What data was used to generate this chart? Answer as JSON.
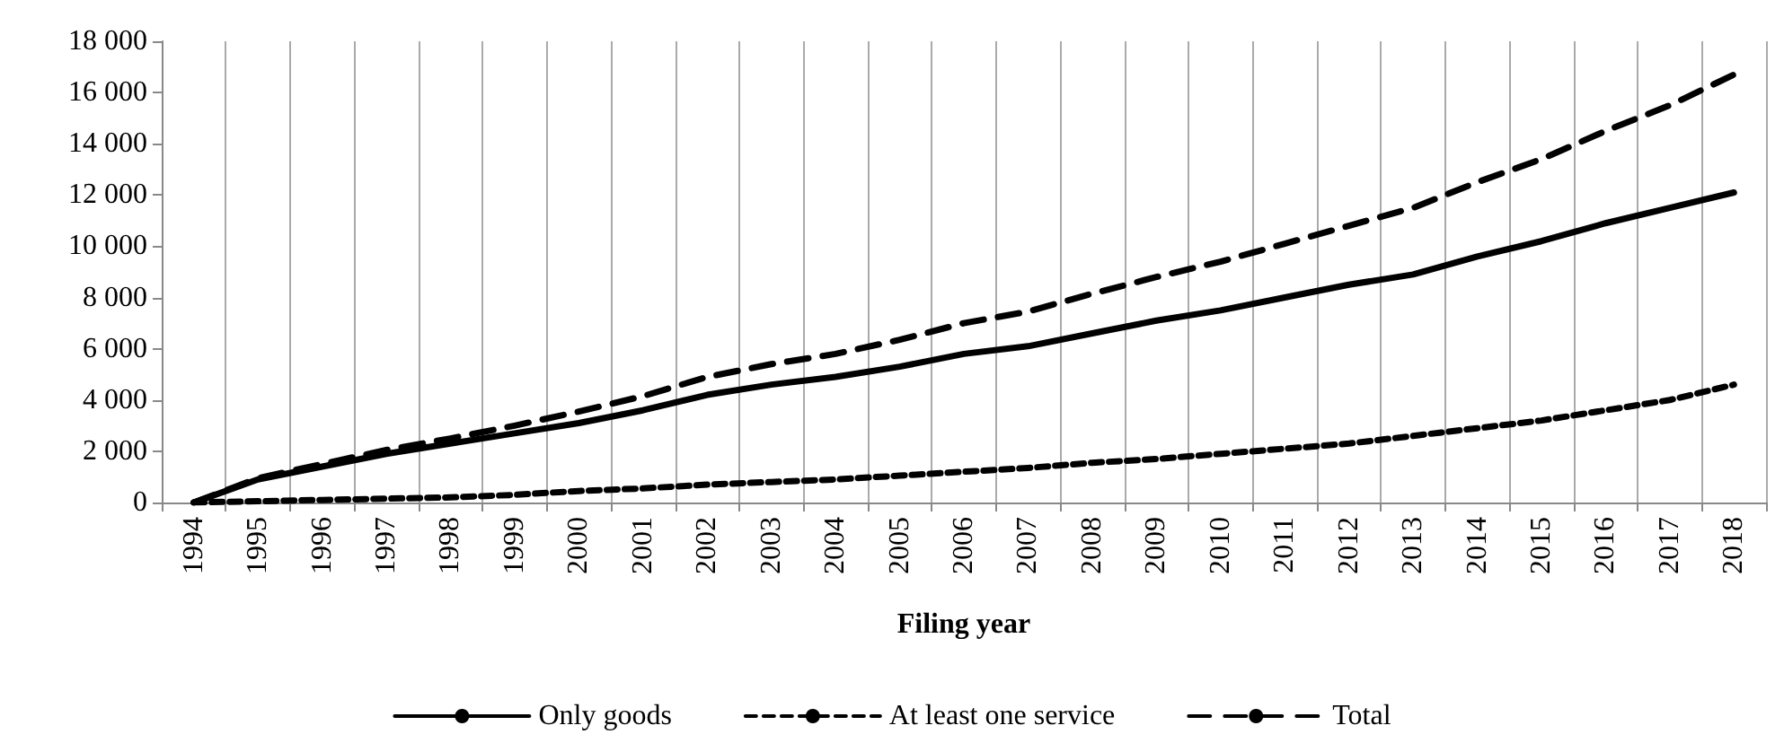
{
  "chart_data": {
    "type": "line",
    "xlabel": "Filing year",
    "categories": [
      "1994",
      "1995",
      "1996",
      "1997",
      "1998",
      "1999",
      "2000",
      "2001",
      "2002",
      "2003",
      "2004",
      "2005",
      "2006",
      "2007",
      "2008",
      "2009",
      "2010",
      "2011",
      "2012",
      "2013",
      "2014",
      "2015",
      "2016",
      "2017",
      "2018"
    ],
    "series": [
      {
        "name": "Only goods",
        "color": "#000000",
        "line_style": "solid",
        "values": [
          0,
          900,
          1400,
          1900,
          2300,
          2700,
          3100,
          3600,
          4200,
          4600,
          4900,
          5300,
          5800,
          6100,
          6600,
          7100,
          7500,
          8000,
          8500,
          8900,
          9600,
          10200,
          10900,
          11500,
          12100
        ]
      },
      {
        "name": "At least one service",
        "color": "#000000",
        "line_style": "dashed",
        "values": [
          0,
          50,
          100,
          150,
          200,
          300,
          450,
          550,
          700,
          800,
          900,
          1050,
          1200,
          1350,
          1550,
          1700,
          1900,
          2100,
          2300,
          2600,
          2900,
          3200,
          3600,
          4000,
          4600
        ]
      },
      {
        "name": "Total",
        "color": "#000000",
        "line_style": "longdash",
        "values": [
          0,
          950,
          1500,
          2050,
          2500,
          3000,
          3550,
          4150,
          4900,
          5400,
          5800,
          6350,
          7000,
          7450,
          8150,
          8800,
          9400,
          10100,
          10800,
          11500,
          12500,
          13400,
          14500,
          15500,
          16700
        ]
      }
    ],
    "ylim": [
      0,
      18000
    ],
    "yticks": [
      {
        "value": 0,
        "label": "0"
      },
      {
        "value": 2000,
        "label": "2 000"
      },
      {
        "value": 4000,
        "label": "4 000"
      },
      {
        "value": 6000,
        "label": "6 000"
      },
      {
        "value": 8000,
        "label": "8 000"
      },
      {
        "value": 10000,
        "label": "10 000"
      },
      {
        "value": 12000,
        "label": "12 000"
      },
      {
        "value": 14000,
        "label": "14 000"
      },
      {
        "value": 16000,
        "label": "16 000"
      },
      {
        "value": 18000,
        "label": "18 000"
      }
    ],
    "grid": "x",
    "legend": "bottom",
    "marker": "none"
  }
}
